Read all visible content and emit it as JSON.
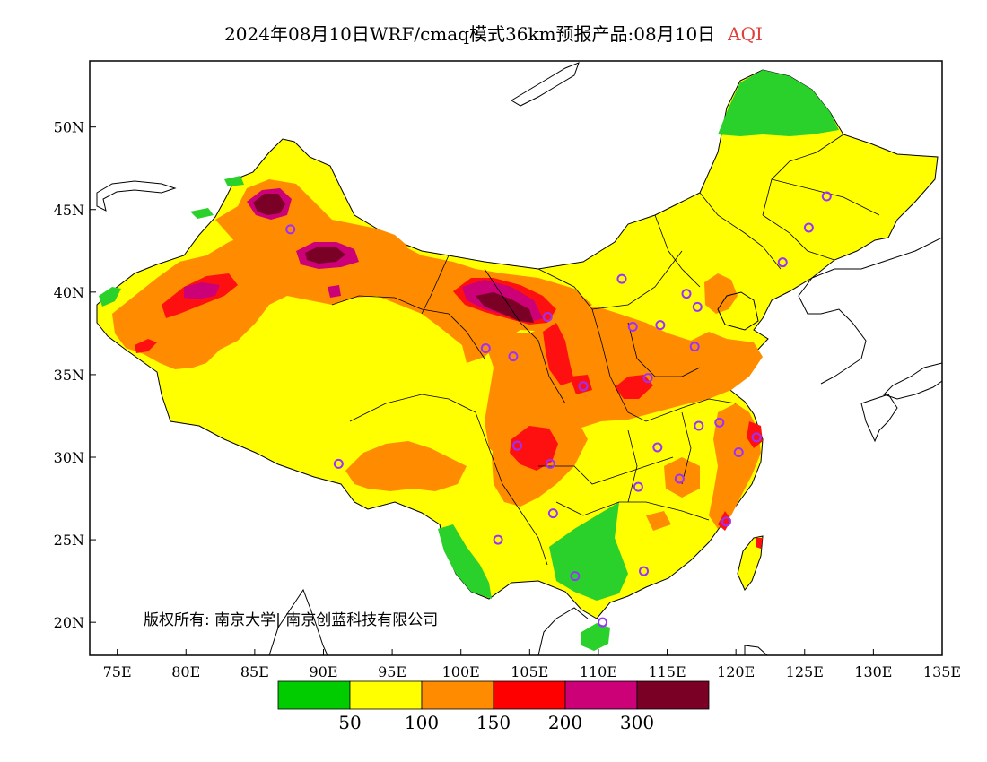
{
  "title": {
    "text": "2024年08月10日WRF/cmaq模式36km预报产品:08月10日",
    "variable": "AQI",
    "variable_color": "#e0403a"
  },
  "copyright": "版权所有: 南京大学| 南京创蓝科技有限公司",
  "axes": {
    "x_ticks": [
      {
        "value": 75,
        "label": "75E"
      },
      {
        "value": 80,
        "label": "80E"
      },
      {
        "value": 85,
        "label": "85E"
      },
      {
        "value": 90,
        "label": "90E"
      },
      {
        "value": 95,
        "label": "95E"
      },
      {
        "value": 100,
        "label": "100E"
      },
      {
        "value": 105,
        "label": "105E"
      },
      {
        "value": 110,
        "label": "110E"
      },
      {
        "value": 115,
        "label": "115E"
      },
      {
        "value": 120,
        "label": "120E"
      },
      {
        "value": 125,
        "label": "125E"
      },
      {
        "value": 130,
        "label": "130E"
      },
      {
        "value": 135,
        "label": "135E"
      }
    ],
    "y_ticks": [
      {
        "value": 20,
        "label": "20N"
      },
      {
        "value": 25,
        "label": "25N"
      },
      {
        "value": 30,
        "label": "30N"
      },
      {
        "value": 35,
        "label": "35N"
      },
      {
        "value": 40,
        "label": "40N"
      },
      {
        "value": 45,
        "label": "45N"
      },
      {
        "value": 50,
        "label": "50N"
      }
    ],
    "lon_range": [
      73,
      135
    ],
    "lat_range": [
      18,
      54
    ]
  },
  "legend": {
    "colors": [
      "#00cc00",
      "#ffff00",
      "#ff8c00",
      "#ff0000",
      "#cc0077",
      "#7a0026"
    ],
    "boundaries": [
      "50",
      "100",
      "150",
      "200",
      "300"
    ]
  },
  "palette": {
    "good": "#2ad12a",
    "moderate": "#ffff00",
    "light": "#ff8c00",
    "medium": "#ff1010",
    "heavy": "#cc0077",
    "severe": "#7a0026",
    "city_marker": "#9b30ff"
  },
  "cities": [
    {
      "lon": 87.6,
      "lat": 43.8
    },
    {
      "lon": 91.1,
      "lat": 29.6
    },
    {
      "lon": 101.8,
      "lat": 36.6
    },
    {
      "lon": 103.8,
      "lat": 36.1
    },
    {
      "lon": 106.3,
      "lat": 38.5
    },
    {
      "lon": 111.7,
      "lat": 40.8
    },
    {
      "lon": 116.4,
      "lat": 39.9
    },
    {
      "lon": 117.2,
      "lat": 39.1
    },
    {
      "lon": 114.5,
      "lat": 38.0
    },
    {
      "lon": 112.5,
      "lat": 37.9
    },
    {
      "lon": 117.0,
      "lat": 36.7
    },
    {
      "lon": 113.6,
      "lat": 34.8
    },
    {
      "lon": 108.9,
      "lat": 34.3
    },
    {
      "lon": 104.1,
      "lat": 30.7
    },
    {
      "lon": 106.5,
      "lat": 29.6
    },
    {
      "lon": 106.7,
      "lat": 26.6
    },
    {
      "lon": 102.7,
      "lat": 25.0
    },
    {
      "lon": 108.3,
      "lat": 22.8
    },
    {
      "lon": 113.3,
      "lat": 23.1
    },
    {
      "lon": 110.3,
      "lat": 20.0
    },
    {
      "lon": 112.9,
      "lat": 28.2
    },
    {
      "lon": 114.3,
      "lat": 30.6
    },
    {
      "lon": 115.9,
      "lat": 28.7
    },
    {
      "lon": 117.3,
      "lat": 31.9
    },
    {
      "lon": 118.8,
      "lat": 32.1
    },
    {
      "lon": 120.2,
      "lat": 30.3
    },
    {
      "lon": 121.5,
      "lat": 31.2
    },
    {
      "lon": 119.3,
      "lat": 26.1
    },
    {
      "lon": 123.4,
      "lat": 41.8
    },
    {
      "lon": 125.3,
      "lat": 43.9
    },
    {
      "lon": 126.6,
      "lat": 45.8
    }
  ]
}
